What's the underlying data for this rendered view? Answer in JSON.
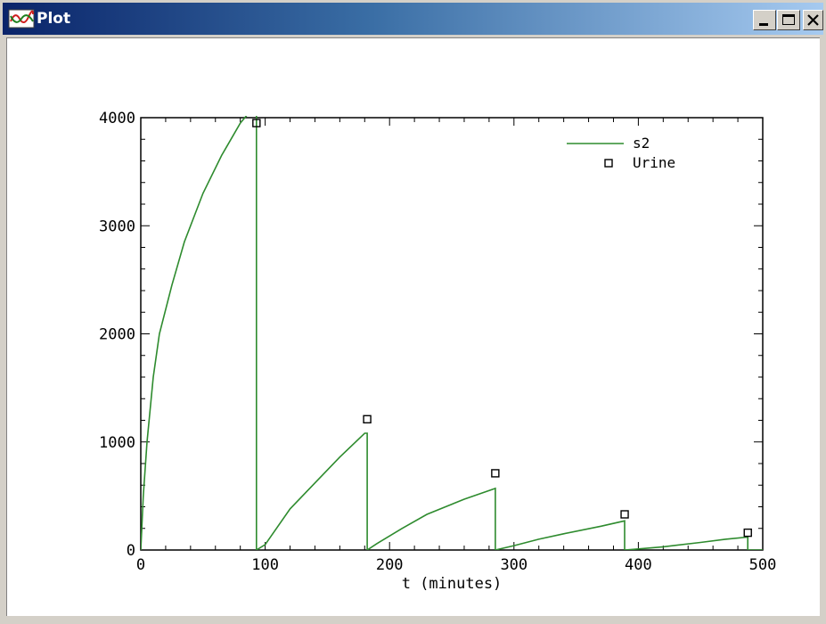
{
  "window": {
    "title": "Plot",
    "app_icon": "plot-app-icon",
    "controls": {
      "minimize_icon": "minimize-icon",
      "maximize_icon": "maximize-icon",
      "close_icon": "close-icon"
    }
  },
  "chart_data": {
    "type": "line",
    "title": "",
    "xlabel": "t (minutes)",
    "ylabel": "",
    "xlim": [
      0,
      500
    ],
    "ylim": [
      0,
      4000
    ],
    "x_ticks": [
      0,
      100,
      200,
      300,
      400,
      500
    ],
    "y_ticks": [
      0,
      1000,
      2000,
      3000,
      4000
    ],
    "grid": false,
    "legend_position": "top-right",
    "colors": {
      "s2": "#2e8b2e",
      "Urine": "#000000"
    },
    "series": [
      {
        "name": "s2",
        "style": "line",
        "segments": [
          [
            [
              0,
              0
            ],
            [
              2,
              500
            ],
            [
              5,
              1000
            ],
            [
              10,
              1600
            ],
            [
              15,
              2000
            ],
            [
              25,
              2450
            ],
            [
              35,
              2850
            ],
            [
              50,
              3300
            ],
            [
              65,
              3650
            ],
            [
              80,
              3950
            ],
            [
              93,
              4130
            ],
            [
              93,
              0
            ]
          ],
          [
            [
              93,
              0
            ],
            [
              100,
              50
            ],
            [
              120,
              380
            ],
            [
              140,
              620
            ],
            [
              160,
              860
            ],
            [
              180,
              1080
            ],
            [
              182,
              1080
            ],
            [
              182,
              0
            ]
          ],
          [
            [
              182,
              0
            ],
            [
              190,
              60
            ],
            [
              210,
              200
            ],
            [
              230,
              330
            ],
            [
              260,
              470
            ],
            [
              285,
              570
            ],
            [
              285,
              0
            ]
          ],
          [
            [
              285,
              0
            ],
            [
              300,
              40
            ],
            [
              320,
              100
            ],
            [
              340,
              150
            ],
            [
              370,
              220
            ],
            [
              389,
              270
            ],
            [
              389,
              0
            ]
          ],
          [
            [
              389,
              0
            ],
            [
              400,
              10
            ],
            [
              420,
              30
            ],
            [
              450,
              70
            ],
            [
              470,
              100
            ],
            [
              488,
              120
            ],
            [
              488,
              0
            ]
          ],
          [
            [
              488,
              0
            ],
            [
              500,
              0
            ]
          ]
        ]
      },
      {
        "name": "Urine",
        "style": "markers",
        "marker": "square",
        "x": [
          93,
          182,
          285,
          389,
          488
        ],
        "y": [
          3950,
          1210,
          710,
          330,
          160
        ]
      }
    ]
  }
}
